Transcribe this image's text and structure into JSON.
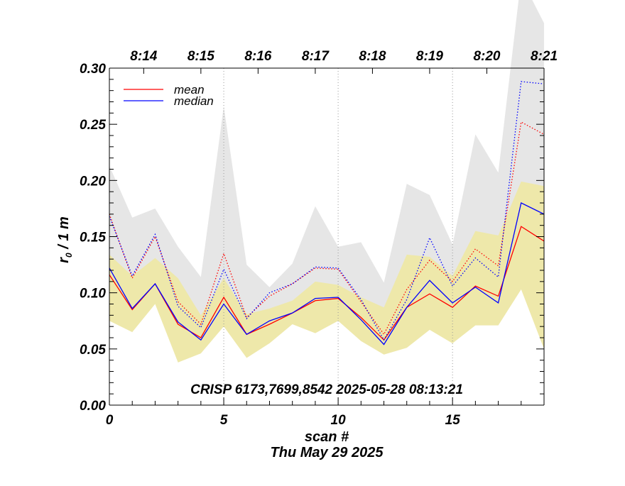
{
  "chart_data": {
    "type": "line",
    "title": "",
    "annotation": "CRISP 6173,7699,8542 2025-05-28 08:13:21",
    "xlabel": "scan #",
    "xlabel_date": "Thu May 29 2025",
    "ylabel_main": "r",
    "ylabel_sub": "0",
    "ylabel_unit": " / 1 m",
    "xlim": [
      0,
      19
    ],
    "ylim": [
      0.0,
      0.3
    ],
    "x_ticks": [
      0,
      5,
      10,
      15
    ],
    "x_tick_labels": [
      "0",
      "5",
      "10",
      "15"
    ],
    "y_ticks": [
      0.0,
      0.05,
      0.1,
      0.15,
      0.2,
      0.25,
      0.3
    ],
    "y_tick_labels": [
      "0.00",
      "0.05",
      "0.10",
      "0.15",
      "0.20",
      "0.25",
      "0.30"
    ],
    "time_ticks": [
      {
        "x": 1.5,
        "label": "8:14"
      },
      {
        "x": 4.0,
        "label": "8:15"
      },
      {
        "x": 6.5,
        "label": "8:16"
      },
      {
        "x": 9.0,
        "label": "8:17"
      },
      {
        "x": 11.5,
        "label": "8:18"
      },
      {
        "x": 14.0,
        "label": "8:19"
      },
      {
        "x": 16.5,
        "label": "8:20"
      },
      {
        "x": 19.0,
        "label": "8:21"
      }
    ],
    "grid_x": [
      5,
      10,
      15
    ],
    "legend_position": "top-left",
    "x": [
      0,
      1,
      2,
      3,
      4,
      5,
      6,
      7,
      8,
      9,
      10,
      11,
      12,
      13,
      14,
      15,
      16,
      17,
      18,
      19
    ],
    "series": [
      {
        "name": "mean",
        "color": "#ff0000",
        "style": "solid",
        "values": [
          0.116,
          0.085,
          0.108,
          0.072,
          0.06,
          0.096,
          0.063,
          0.072,
          0.082,
          0.093,
          0.095,
          0.078,
          0.058,
          0.087,
          0.099,
          0.087,
          0.106,
          0.097,
          0.159,
          0.146
        ]
      },
      {
        "name": "median",
        "color": "#0000ff",
        "style": "solid",
        "values": [
          0.122,
          0.086,
          0.108,
          0.074,
          0.058,
          0.09,
          0.063,
          0.075,
          0.082,
          0.095,
          0.096,
          0.076,
          0.054,
          0.087,
          0.111,
          0.091,
          0.105,
          0.091,
          0.18,
          0.17
        ]
      },
      {
        "name": "",
        "color": "#ff0000",
        "style": "dotted",
        "values": [
          0.17,
          0.113,
          0.15,
          0.092,
          0.072,
          0.135,
          0.078,
          0.097,
          0.108,
          0.122,
          0.121,
          0.092,
          0.063,
          0.103,
          0.129,
          0.11,
          0.139,
          0.124,
          0.252,
          0.241
        ]
      },
      {
        "name": "",
        "color": "#0000ff",
        "style": "dotted",
        "values": [
          0.168,
          0.115,
          0.152,
          0.088,
          0.069,
          0.121,
          0.077,
          0.1,
          0.108,
          0.123,
          0.122,
          0.094,
          0.058,
          0.094,
          0.149,
          0.106,
          0.131,
          0.114,
          0.288,
          0.286
        ]
      }
    ],
    "bands": [
      {
        "color": "#e6e6e6",
        "lower": [
          0.1,
          0.085,
          0.108,
          0.072,
          0.06,
          0.096,
          0.063,
          0.072,
          0.082,
          0.093,
          0.095,
          0.078,
          0.058,
          0.087,
          0.099,
          0.087,
          0.106,
          0.097,
          0.159,
          0.146
        ],
        "upper": [
          0.213,
          0.167,
          0.175,
          0.141,
          0.114,
          0.266,
          0.125,
          0.105,
          0.126,
          0.177,
          0.141,
          0.145,
          0.109,
          0.197,
          0.187,
          0.143,
          0.241,
          0.207,
          0.38,
          0.34
        ]
      },
      {
        "color": "#eee8aa",
        "lower": [
          0.075,
          0.065,
          0.09,
          0.038,
          0.046,
          0.07,
          0.042,
          0.055,
          0.072,
          0.064,
          0.075,
          0.057,
          0.045,
          0.051,
          0.067,
          0.055,
          0.071,
          0.071,
          0.103,
          0.05
        ],
        "upper": [
          0.134,
          0.115,
          0.131,
          0.113,
          0.08,
          0.113,
          0.081,
          0.086,
          0.093,
          0.11,
          0.107,
          0.096,
          0.087,
          0.134,
          0.132,
          0.115,
          0.155,
          0.151,
          0.199,
          0.195
        ]
      }
    ]
  }
}
